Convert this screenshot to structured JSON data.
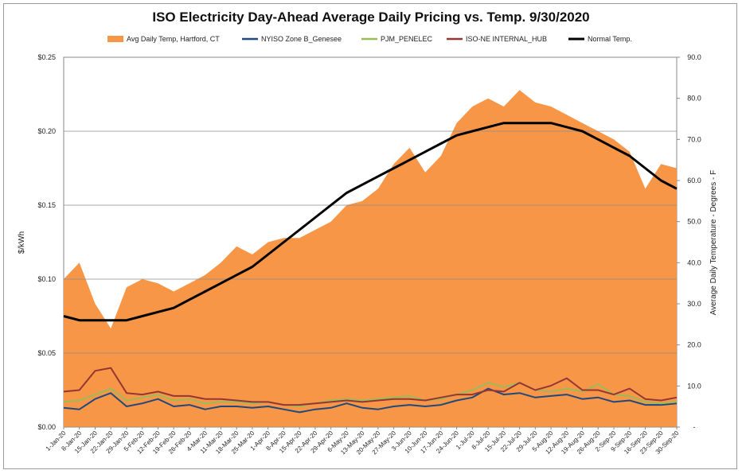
{
  "chart_data": {
    "type": "area+line",
    "title": "ISO Electricity Day-Ahead Average Daily Pricing vs. Temp. 9/30/2020",
    "ylabel_left": "$/kWh",
    "ylabel_right": "Average Daily Temperature - Degrees - F",
    "ylim_left": [
      0,
      0.25
    ],
    "ylim_right": [
      0,
      90
    ],
    "left_ticks": [
      "$0.00",
      "$0.05",
      "$0.10",
      "$0.15",
      "$0.20",
      "$0.25"
    ],
    "right_ticks": [
      "-",
      "10.0",
      "20.0",
      "30.0",
      "40.0",
      "50.0",
      "60.0",
      "70.0",
      "80.0",
      "90.0"
    ],
    "x_tick_labels": [
      "1-Jan-20",
      "8-Jan-20",
      "15-Jan-20",
      "22-Jan-20",
      "29-Jan-20",
      "5-Feb-20",
      "12-Feb-20",
      "19-Feb-20",
      "26-Feb-20",
      "4-Mar-20",
      "11-Mar-20",
      "18-Mar-20",
      "25-Mar-20",
      "1-Apr-20",
      "8-Apr-20",
      "15-Apr-20",
      "22-Apr-20",
      "29-Apr-20",
      "6-May-20",
      "13-May-20",
      "20-May-20",
      "27-May-20",
      "3-Jun-20",
      "10-Jun-20",
      "17-Jun-20",
      "24-Jun-20",
      "1-Jul-20",
      "8-Jul-20",
      "15-Jul-20",
      "22-Jul-20",
      "29-Jul-20",
      "5-Aug-20",
      "12-Aug-20",
      "19-Aug-20",
      "26-Aug-20",
      "2-Sep-20",
      "9-Sep-20",
      "16-Sep-20",
      "23-Sep-20",
      "30-Sep-20"
    ],
    "grid": true,
    "legend_position": "top",
    "series": [
      {
        "name": "Avg Daily Temp, Hartford, CT",
        "axis": "right",
        "kind": "area",
        "color": "#f79646",
        "weekly_values": [
          36,
          40,
          30,
          24,
          34,
          36,
          35,
          33,
          35,
          37,
          40,
          44,
          42,
          45,
          46,
          46,
          48,
          50,
          54,
          55,
          58,
          64,
          68,
          62,
          66,
          74,
          78,
          80,
          78,
          82,
          79,
          78,
          76,
          74,
          72,
          70,
          67,
          58,
          64,
          63
        ]
      },
      {
        "name": "NYISO Zone B_Genesee",
        "axis": "left",
        "kind": "line",
        "color": "#1f497d",
        "weekly_values": [
          0.013,
          0.012,
          0.019,
          0.023,
          0.014,
          0.016,
          0.019,
          0.014,
          0.015,
          0.012,
          0.014,
          0.014,
          0.013,
          0.014,
          0.012,
          0.01,
          0.012,
          0.013,
          0.016,
          0.013,
          0.012,
          0.014,
          0.015,
          0.014,
          0.015,
          0.018,
          0.02,
          0.026,
          0.022,
          0.023,
          0.02,
          0.021,
          0.022,
          0.019,
          0.02,
          0.017,
          0.018,
          0.015,
          0.015,
          0.016
        ]
      },
      {
        "name": "PJM_PENELEC",
        "axis": "left",
        "kind": "line",
        "color": "#9bbb59",
        "weekly_values": [
          0.017,
          0.018,
          0.022,
          0.026,
          0.018,
          0.02,
          0.022,
          0.018,
          0.019,
          0.016,
          0.017,
          0.017,
          0.016,
          0.017,
          0.015,
          0.014,
          0.016,
          0.018,
          0.019,
          0.018,
          0.019,
          0.02,
          0.021,
          0.018,
          0.019,
          0.022,
          0.025,
          0.03,
          0.027,
          0.03,
          0.025,
          0.024,
          0.026,
          0.024,
          0.029,
          0.022,
          0.021,
          0.017,
          0.016,
          0.017
        ]
      },
      {
        "name": "ISO-NE INTERNAL_HUB",
        "axis": "left",
        "kind": "line",
        "color": "#943634",
        "weekly_values": [
          0.024,
          0.025,
          0.038,
          0.04,
          0.023,
          0.022,
          0.024,
          0.021,
          0.021,
          0.019,
          0.019,
          0.018,
          0.017,
          0.017,
          0.015,
          0.015,
          0.016,
          0.017,
          0.018,
          0.017,
          0.018,
          0.019,
          0.019,
          0.018,
          0.02,
          0.022,
          0.022,
          0.025,
          0.024,
          0.03,
          0.025,
          0.028,
          0.033,
          0.025,
          0.025,
          0.022,
          0.026,
          0.019,
          0.018,
          0.02
        ]
      },
      {
        "name": "Normal Temp.",
        "axis": "right",
        "kind": "line",
        "color": "#000000",
        "weekly_values": [
          27,
          26,
          26,
          26,
          26,
          27,
          28,
          29,
          31,
          33,
          35,
          37,
          39,
          42,
          45,
          48,
          51,
          54,
          57,
          59,
          61,
          63,
          65,
          67,
          69,
          71,
          72,
          73,
          74,
          74,
          74,
          74,
          73,
          72,
          70,
          68,
          66,
          63,
          60,
          58
        ]
      }
    ]
  }
}
